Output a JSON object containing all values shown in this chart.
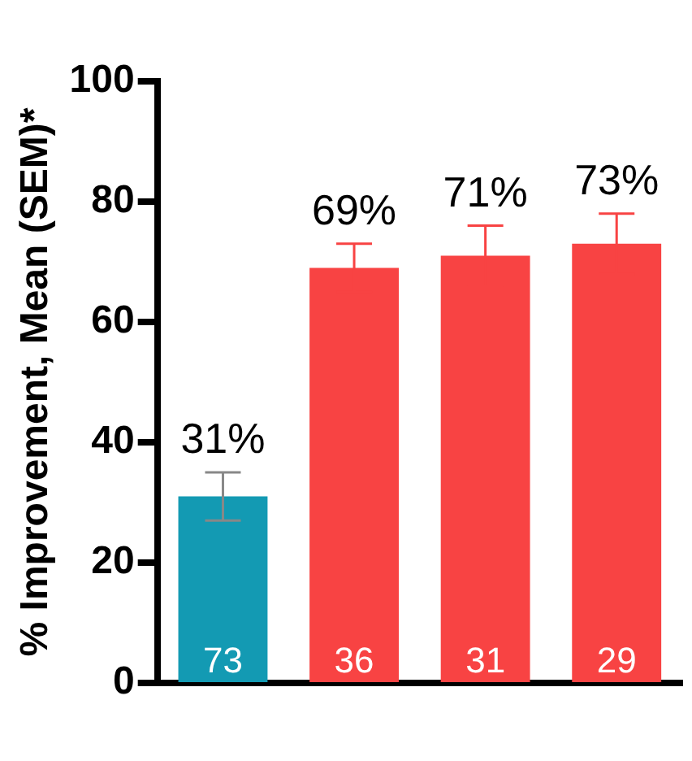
{
  "chart_data": {
    "type": "bar",
    "ylabel": "% Improvement, Mean (SEM)*",
    "categories": [
      null,
      null,
      null,
      null
    ],
    "values": [
      31,
      69,
      71,
      73
    ],
    "colors": [
      "#139ab3",
      "#f84343",
      "#f84343",
      "#f84343"
    ],
    "errors": [
      4,
      4,
      5,
      5
    ],
    "value_labels": [
      "31%",
      "69%",
      "71%",
      "73%"
    ],
    "annotations": [
      "73",
      "36",
      "31",
      "29"
    ],
    "ylim": [
      0,
      100
    ],
    "yticks": [
      0,
      20,
      40,
      60,
      80,
      100
    ],
    "grid": false,
    "legend": false
  }
}
